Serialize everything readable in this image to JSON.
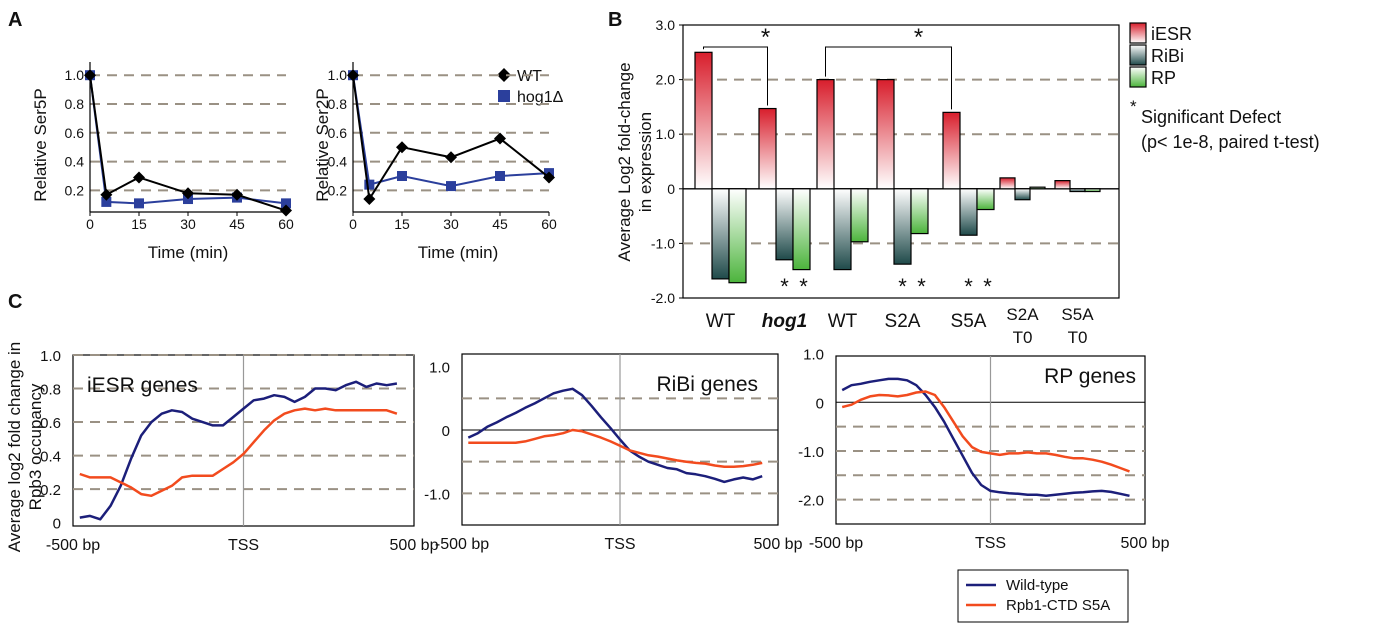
{
  "panels": {
    "a": "A",
    "b": "B",
    "c": "C"
  },
  "colors": {
    "wt": "#000000",
    "hog1": "#2b3f9c",
    "iesr": "#d81e2c",
    "ribi": "#1f4a4a",
    "rp": "#4cb43c",
    "star_red": "#e0202a",
    "star_dark": "#234040",
    "star_green": "#7ccc3c",
    "wildtype": "#1c1f7a",
    "s5a": "#f24b1e"
  },
  "chart_data": [
    {
      "id": "A1",
      "type": "line",
      "ylabel": "Relative Ser5P",
      "xlabel": "Time (min)",
      "xticks": [
        0,
        15,
        30,
        45,
        60
      ],
      "yticks": [
        0.2,
        0.4,
        0.6,
        0.8,
        1.0
      ],
      "ytick_labels": [
        "0.2",
        "0.4",
        "0.6",
        "0.8",
        "1.0"
      ],
      "xlim": [
        0,
        60
      ],
      "ylim": [
        0.05,
        1.05
      ],
      "series": [
        {
          "name": "WT",
          "x": [
            0,
            5,
            15,
            30,
            45,
            60
          ],
          "y": [
            1.0,
            0.17,
            0.29,
            0.18,
            0.17,
            0.06
          ]
        },
        {
          "name": "hog1Δ",
          "x": [
            0,
            5,
            15,
            30,
            45,
            60
          ],
          "y": [
            1.0,
            0.12,
            0.11,
            0.14,
            0.15,
            0.11
          ]
        }
      ]
    },
    {
      "id": "A2",
      "type": "line",
      "ylabel": "Relative Ser2P",
      "xlabel": "Time (min)",
      "xticks": [
        0,
        15,
        30,
        45,
        60
      ],
      "yticks": [
        0.2,
        0.4,
        0.6,
        0.8,
        1.0
      ],
      "ytick_labels": [
        "0.2",
        "0.4",
        "0.6",
        "0.8",
        "1.0"
      ],
      "xlim": [
        0,
        60
      ],
      "ylim": [
        0.05,
        1.05
      ],
      "legend": [
        "WT",
        "hog1Δ"
      ],
      "series": [
        {
          "name": "WT",
          "x": [
            0,
            5,
            15,
            30,
            45,
            60
          ],
          "y": [
            1.0,
            0.14,
            0.5,
            0.43,
            0.56,
            0.29
          ]
        },
        {
          "name": "hog1Δ",
          "x": [
            0,
            5,
            15,
            30,
            45,
            60
          ],
          "y": [
            1.0,
            0.24,
            0.3,
            0.23,
            0.3,
            0.32
          ]
        }
      ]
    },
    {
      "id": "B",
      "type": "bar",
      "ylabel": [
        "Average Log2 fold-change",
        "in expression"
      ],
      "ylim": [
        -2.0,
        3.0
      ],
      "yticks": [
        -2.0,
        -1.0,
        0,
        1.0,
        2.0,
        3.0
      ],
      "ytick_labels": [
        "-2.0",
        "-1.0",
        "0",
        "1.0",
        "2.0",
        "3.0"
      ],
      "categories": [
        "WT",
        "hog1",
        "WT",
        "S2A",
        "S5A",
        "S2A T0",
        "S5A T0"
      ],
      "series": [
        {
          "name": "iESR",
          "values": [
            2.5,
            1.47,
            2.0,
            2.0,
            1.4,
            0.2,
            0.15
          ]
        },
        {
          "name": "RiBi",
          "values": [
            -1.65,
            -1.3,
            -1.48,
            -1.38,
            -0.85,
            -0.2,
            -0.05
          ]
        },
        {
          "name": "RP",
          "values": [
            -1.72,
            -1.48,
            -0.97,
            -0.82,
            -0.38,
            0.03,
            -0.05
          ]
        }
      ],
      "footnote_mark": "*",
      "footnote": [
        "Significant Defect",
        "(p< 1e-8, paired t-test)"
      ]
    },
    {
      "id": "C1",
      "type": "line",
      "title": "iESR genes",
      "ylabel": [
        "Average log2 fold change in",
        "Rpb3 occupancy"
      ],
      "xtick_labels": [
        "-500 bp",
        "TSS",
        "500 bp"
      ],
      "xlim": [
        -500,
        500
      ],
      "ylim": [
        -0.02,
        1.0
      ],
      "yticks": [
        0,
        0.2,
        0.4,
        0.6,
        0.8,
        1.0
      ],
      "ytick_labels": [
        "0",
        "0.2",
        "0.4",
        "0.6",
        "0.8",
        "1.0"
      ],
      "series": [
        {
          "name": "Wild-type",
          "x": [
            -480,
            -450,
            -420,
            -390,
            -360,
            -330,
            -300,
            -270,
            -240,
            -210,
            -180,
            -150,
            -120,
            -90,
            -60,
            -30,
            0,
            30,
            60,
            90,
            120,
            150,
            180,
            210,
            240,
            270,
            300,
            330,
            360,
            390,
            420,
            450
          ],
          "y": [
            0.03,
            0.04,
            0.02,
            0.1,
            0.22,
            0.38,
            0.52,
            0.6,
            0.65,
            0.67,
            0.66,
            0.62,
            0.6,
            0.58,
            0.58,
            0.63,
            0.68,
            0.73,
            0.74,
            0.76,
            0.75,
            0.72,
            0.75,
            0.8,
            0.8,
            0.79,
            0.82,
            0.84,
            0.81,
            0.83,
            0.82,
            0.83
          ]
        },
        {
          "name": "Rpb1-CTD S5A",
          "x": [
            -480,
            -450,
            -420,
            -390,
            -360,
            -330,
            -300,
            -270,
            -240,
            -210,
            -180,
            -150,
            -120,
            -90,
            -60,
            -30,
            0,
            30,
            60,
            90,
            120,
            150,
            180,
            210,
            240,
            270,
            300,
            330,
            360,
            390,
            420,
            450
          ],
          "y": [
            0.29,
            0.27,
            0.27,
            0.27,
            0.24,
            0.21,
            0.17,
            0.16,
            0.19,
            0.22,
            0.27,
            0.28,
            0.28,
            0.28,
            0.32,
            0.36,
            0.41,
            0.48,
            0.55,
            0.61,
            0.65,
            0.67,
            0.68,
            0.67,
            0.68,
            0.67,
            0.67,
            0.67,
            0.67,
            0.67,
            0.67,
            0.65
          ]
        }
      ]
    },
    {
      "id": "C2",
      "type": "line",
      "title": "RiBi genes",
      "xtick_labels": [
        "-500 bp",
        "TSS",
        "500 bp"
      ],
      "xlim": [
        -500,
        500
      ],
      "ylim": [
        -1.5,
        1.2
      ],
      "yticks": [
        -1.0,
        0,
        1.0
      ],
      "ytick_labels": [
        "-1.0",
        "0",
        "1.0"
      ],
      "series": [
        {
          "name": "Wild-type",
          "x": [
            -480,
            -450,
            -420,
            -390,
            -360,
            -330,
            -300,
            -270,
            -240,
            -210,
            -180,
            -150,
            -120,
            -90,
            -60,
            -30,
            0,
            30,
            60,
            90,
            120,
            150,
            180,
            210,
            240,
            270,
            300,
            330,
            360,
            390,
            420,
            450
          ],
          "y": [
            -0.12,
            -0.05,
            0.05,
            0.12,
            0.2,
            0.27,
            0.35,
            0.42,
            0.5,
            0.58,
            0.62,
            0.65,
            0.55,
            0.38,
            0.2,
            0.03,
            -0.15,
            -0.32,
            -0.42,
            -0.5,
            -0.55,
            -0.6,
            -0.62,
            -0.68,
            -0.7,
            -0.73,
            -0.77,
            -0.82,
            -0.78,
            -0.75,
            -0.78,
            -0.73
          ]
        },
        {
          "name": "Rpb1-CTD S5A",
          "x": [
            -480,
            -450,
            -420,
            -390,
            -360,
            -330,
            -300,
            -270,
            -240,
            -210,
            -180,
            -150,
            -120,
            -90,
            -60,
            -30,
            0,
            30,
            60,
            90,
            120,
            150,
            180,
            210,
            240,
            270,
            300,
            330,
            360,
            390,
            420,
            450
          ],
          "y": [
            -0.2,
            -0.2,
            -0.2,
            -0.2,
            -0.2,
            -0.2,
            -0.18,
            -0.14,
            -0.1,
            -0.08,
            -0.05,
            0.0,
            -0.02,
            -0.07,
            -0.12,
            -0.18,
            -0.25,
            -0.32,
            -0.36,
            -0.4,
            -0.42,
            -0.45,
            -0.48,
            -0.5,
            -0.52,
            -0.53,
            -0.56,
            -0.58,
            -0.58,
            -0.57,
            -0.55,
            -0.52
          ]
        }
      ]
    },
    {
      "id": "C3",
      "type": "line",
      "title": "RP genes",
      "xtick_labels": [
        "-500 bp",
        "TSS",
        "500 bp"
      ],
      "xlim": [
        -500,
        500
      ],
      "ylim": [
        -2.5,
        0.95
      ],
      "yticks": [
        -2.0,
        -1.0,
        0,
        1.0
      ],
      "ytick_labels": [
        "-2.0",
        "-1.0",
        "0",
        "1.0"
      ],
      "series": [
        {
          "name": "Wild-type",
          "x": [
            -480,
            -450,
            -420,
            -390,
            -360,
            -330,
            -300,
            -270,
            -240,
            -210,
            -180,
            -150,
            -120,
            -90,
            -60,
            -30,
            0,
            30,
            60,
            90,
            120,
            150,
            180,
            210,
            240,
            270,
            300,
            330,
            360,
            390,
            420,
            450
          ],
          "y": [
            0.25,
            0.35,
            0.38,
            0.42,
            0.45,
            0.48,
            0.48,
            0.45,
            0.35,
            0.15,
            -0.1,
            -0.4,
            -0.75,
            -1.1,
            -1.45,
            -1.7,
            -1.82,
            -1.85,
            -1.87,
            -1.88,
            -1.9,
            -1.9,
            -1.92,
            -1.9,
            -1.88,
            -1.86,
            -1.85,
            -1.83,
            -1.82,
            -1.84,
            -1.88,
            -1.92
          ]
        },
        {
          "name": "Rpb1-CTD S5A",
          "x": [
            -480,
            -450,
            -420,
            -390,
            -360,
            -330,
            -300,
            -270,
            -240,
            -210,
            -180,
            -150,
            -120,
            -90,
            -60,
            -30,
            0,
            30,
            60,
            90,
            120,
            150,
            180,
            210,
            240,
            270,
            300,
            330,
            360,
            390,
            420,
            450
          ],
          "y": [
            -0.1,
            -0.05,
            0.05,
            0.12,
            0.15,
            0.14,
            0.12,
            0.15,
            0.2,
            0.22,
            0.15,
            -0.1,
            -0.4,
            -0.7,
            -0.92,
            -1.02,
            -1.05,
            -1.08,
            -1.05,
            -1.05,
            -1.03,
            -1.05,
            -1.05,
            -1.08,
            -1.12,
            -1.15,
            -1.15,
            -1.18,
            -1.22,
            -1.28,
            -1.35,
            -1.42
          ]
        }
      ]
    }
  ],
  "legend_c": [
    "Wild-type",
    "Rpb1-CTD S5A"
  ]
}
